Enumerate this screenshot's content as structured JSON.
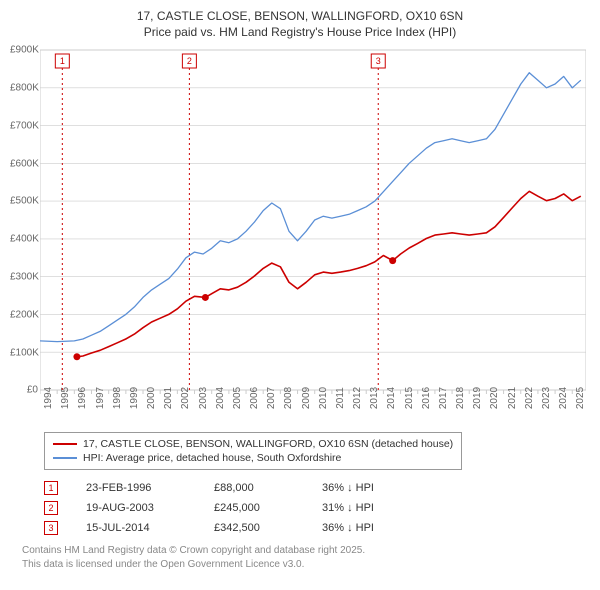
{
  "title_line1": "17, CASTLE CLOSE, BENSON, WALLINGFORD, OX10 6SN",
  "title_line2": "Price paid vs. HM Land Registry's House Price Index (HPI)",
  "chart": {
    "type": "line",
    "background_color": "#ffffff",
    "grid_color": "#cccccc",
    "axis_label_color": "#666666",
    "label_fontsize": 10,
    "x": {
      "min": 1994,
      "max": 2025.8,
      "ticks": [
        1994,
        1995,
        1996,
        1997,
        1998,
        1999,
        2000,
        2001,
        2002,
        2003,
        2004,
        2005,
        2006,
        2007,
        2008,
        2009,
        2010,
        2011,
        2012,
        2013,
        2014,
        2015,
        2016,
        2017,
        2018,
        2019,
        2020,
        2021,
        2022,
        2023,
        2024,
        2025
      ]
    },
    "y": {
      "min": 0,
      "max": 900000,
      "ticks": [
        0,
        100000,
        200000,
        300000,
        400000,
        500000,
        600000,
        700000,
        800000,
        900000
      ],
      "tick_labels": [
        "£0",
        "£100K",
        "£200K",
        "£300K",
        "£400K",
        "£500K",
        "£600K",
        "£700K",
        "£800K",
        "£900K"
      ]
    },
    "series": [
      {
        "id": "hpi",
        "label": "HPI: Average price, detached house, South Oxfordshire",
        "color": "#5b8fd6",
        "width": 1.3,
        "points": [
          [
            1994.0,
            130000
          ],
          [
            1995.0,
            128000
          ],
          [
            1996.0,
            130000
          ],
          [
            1996.5,
            135000
          ],
          [
            1997.0,
            145000
          ],
          [
            1997.5,
            155000
          ],
          [
            1998.0,
            170000
          ],
          [
            1998.5,
            185000
          ],
          [
            1999.0,
            200000
          ],
          [
            1999.5,
            220000
          ],
          [
            2000.0,
            245000
          ],
          [
            2000.5,
            265000
          ],
          [
            2001.0,
            280000
          ],
          [
            2001.5,
            295000
          ],
          [
            2002.0,
            320000
          ],
          [
            2002.5,
            350000
          ],
          [
            2003.0,
            365000
          ],
          [
            2003.5,
            360000
          ],
          [
            2004.0,
            375000
          ],
          [
            2004.5,
            395000
          ],
          [
            2005.0,
            390000
          ],
          [
            2005.5,
            400000
          ],
          [
            2006.0,
            420000
          ],
          [
            2006.5,
            445000
          ],
          [
            2007.0,
            475000
          ],
          [
            2007.5,
            495000
          ],
          [
            2008.0,
            480000
          ],
          [
            2008.5,
            420000
          ],
          [
            2009.0,
            395000
          ],
          [
            2009.5,
            420000
          ],
          [
            2010.0,
            450000
          ],
          [
            2010.5,
            460000
          ],
          [
            2011.0,
            455000
          ],
          [
            2011.5,
            460000
          ],
          [
            2012.0,
            465000
          ],
          [
            2012.5,
            475000
          ],
          [
            2013.0,
            485000
          ],
          [
            2013.5,
            500000
          ],
          [
            2014.0,
            525000
          ],
          [
            2014.5,
            550000
          ],
          [
            2015.0,
            575000
          ],
          [
            2015.5,
            600000
          ],
          [
            2016.0,
            620000
          ],
          [
            2016.5,
            640000
          ],
          [
            2017.0,
            655000
          ],
          [
            2017.5,
            660000
          ],
          [
            2018.0,
            665000
          ],
          [
            2018.5,
            660000
          ],
          [
            2019.0,
            655000
          ],
          [
            2019.5,
            660000
          ],
          [
            2020.0,
            665000
          ],
          [
            2020.5,
            690000
          ],
          [
            2021.0,
            730000
          ],
          [
            2021.5,
            770000
          ],
          [
            2022.0,
            810000
          ],
          [
            2022.5,
            840000
          ],
          [
            2023.0,
            820000
          ],
          [
            2023.5,
            800000
          ],
          [
            2024.0,
            810000
          ],
          [
            2024.5,
            830000
          ],
          [
            2025.0,
            800000
          ],
          [
            2025.5,
            820000
          ]
        ]
      },
      {
        "id": "price",
        "label": "17, CASTLE CLOSE, BENSON, WALLINGFORD, OX10 6SN (detached house)",
        "color": "#cc0000",
        "width": 1.6,
        "points": [
          [
            1996.15,
            88000
          ],
          [
            1996.5,
            90000
          ],
          [
            1997.0,
            98000
          ],
          [
            1997.5,
            105000
          ],
          [
            1998.0,
            115000
          ],
          [
            1998.5,
            125000
          ],
          [
            1999.0,
            135000
          ],
          [
            1999.5,
            148000
          ],
          [
            2000.0,
            165000
          ],
          [
            2000.5,
            180000
          ],
          [
            2001.0,
            190000
          ],
          [
            2001.5,
            200000
          ],
          [
            2002.0,
            215000
          ],
          [
            2002.5,
            235000
          ],
          [
            2003.0,
            248000
          ],
          [
            2003.63,
            245000
          ],
          [
            2004.0,
            255000
          ],
          [
            2004.5,
            268000
          ],
          [
            2005.0,
            265000
          ],
          [
            2005.5,
            272000
          ],
          [
            2006.0,
            285000
          ],
          [
            2006.5,
            302000
          ],
          [
            2007.0,
            322000
          ],
          [
            2007.5,
            336000
          ],
          [
            2008.0,
            326000
          ],
          [
            2008.5,
            285000
          ],
          [
            2009.0,
            268000
          ],
          [
            2009.5,
            285000
          ],
          [
            2010.0,
            305000
          ],
          [
            2010.5,
            312000
          ],
          [
            2011.0,
            309000
          ],
          [
            2011.5,
            312000
          ],
          [
            2012.0,
            316000
          ],
          [
            2012.5,
            322000
          ],
          [
            2013.0,
            329000
          ],
          [
            2013.5,
            339000
          ],
          [
            2014.0,
            356000
          ],
          [
            2014.54,
            342500
          ],
          [
            2015.0,
            360000
          ],
          [
            2015.5,
            376000
          ],
          [
            2016.0,
            388000
          ],
          [
            2016.5,
            401000
          ],
          [
            2017.0,
            410000
          ],
          [
            2017.5,
            413000
          ],
          [
            2018.0,
            416000
          ],
          [
            2018.5,
            413000
          ],
          [
            2019.0,
            410000
          ],
          [
            2019.5,
            413000
          ],
          [
            2020.0,
            416000
          ],
          [
            2020.5,
            432000
          ],
          [
            2021.0,
            457000
          ],
          [
            2021.5,
            482000
          ],
          [
            2022.0,
            507000
          ],
          [
            2022.5,
            526000
          ],
          [
            2023.0,
            513000
          ],
          [
            2023.5,
            501000
          ],
          [
            2024.0,
            507000
          ],
          [
            2024.5,
            519000
          ],
          [
            2025.0,
            501000
          ],
          [
            2025.5,
            513000
          ]
        ]
      }
    ],
    "sale_points": [
      {
        "x": 1996.15,
        "y": 88000
      },
      {
        "x": 2003.63,
        "y": 245000
      },
      {
        "x": 2014.54,
        "y": 342500
      }
    ],
    "sale_point_color": "#cc0000",
    "markers": [
      {
        "num": "1",
        "x": 1995.3
      },
      {
        "num": "2",
        "x": 2002.7
      },
      {
        "num": "3",
        "x": 2013.7
      }
    ],
    "marker_color": "#cc0000"
  },
  "legend": {
    "border_color": "#999999",
    "rows": [
      {
        "color": "#cc0000",
        "label": "17, CASTLE CLOSE, BENSON, WALLINGFORD, OX10 6SN (detached house)"
      },
      {
        "color": "#5b8fd6",
        "label": "HPI: Average price, detached house, South Oxfordshire"
      }
    ]
  },
  "table": {
    "rows": [
      {
        "num": "1",
        "date": "23-FEB-1996",
        "price": "£88,000",
        "delta": "36% ↓ HPI"
      },
      {
        "num": "2",
        "date": "19-AUG-2003",
        "price": "£245,000",
        "delta": "31% ↓ HPI"
      },
      {
        "num": "3",
        "date": "15-JUL-2014",
        "price": "£342,500",
        "delta": "36% ↓ HPI"
      }
    ]
  },
  "footer_line1": "Contains HM Land Registry data © Crown copyright and database right 2025.",
  "footer_line2": "This data is licensed under the Open Government Licence v3.0."
}
